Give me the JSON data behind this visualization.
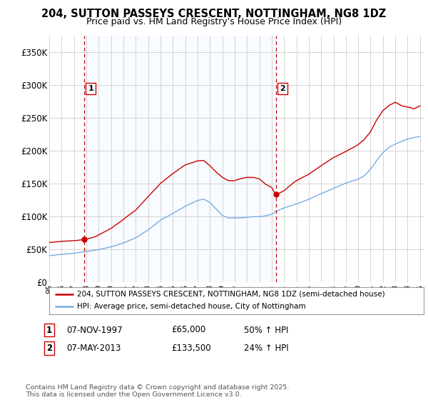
{
  "title1": "204, SUTTON PASSEYS CRESCENT, NOTTINGHAM, NG8 1DZ",
  "title2": "Price paid vs. HM Land Registry's House Price Index (HPI)",
  "sale1_date": "07-NOV-1997",
  "sale1_price": 65000,
  "sale1_hpi": "50% ↑ HPI",
  "sale1_label": "1",
  "sale2_date": "07-MAY-2013",
  "sale2_price": 133500,
  "sale2_hpi": "24% ↑ HPI",
  "sale2_label": "2",
  "legend1": "204, SUTTON PASSEYS CRESCENT, NOTTINGHAM, NG8 1DZ (semi-detached house)",
  "legend2": "HPI: Average price, semi-detached house, City of Nottingham",
  "footnote": "Contains HM Land Registry data © Crown copyright and database right 2025.\nThis data is licensed under the Open Government Licence v3.0.",
  "property_color": "#cc0000",
  "hpi_color": "#7aace0",
  "fill_color": "#ddeeff",
  "vline_color": "#cc0000",
  "background_color": "#ffffff",
  "grid_color": "#cccccc",
  "ylim": [
    0,
    375000
  ],
  "yticks": [
    0,
    50000,
    100000,
    150000,
    200000,
    250000,
    300000,
    350000
  ],
  "ytick_labels": [
    "£0",
    "£50K",
    "£100K",
    "£150K",
    "£200K",
    "£250K",
    "£300K",
    "£350K"
  ]
}
